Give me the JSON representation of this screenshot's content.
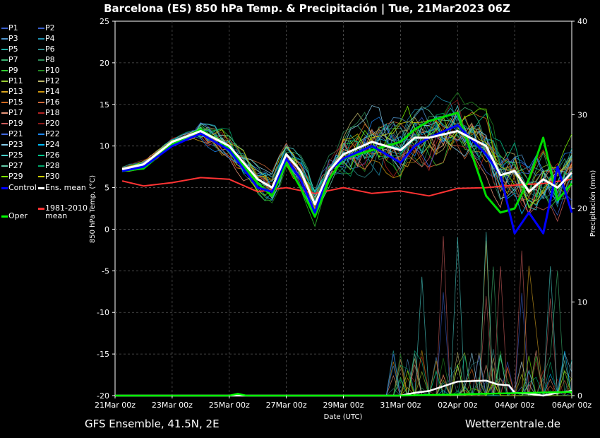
{
  "page": {
    "title": "Barcelona  (ES)  850 hPa Temp. & Precipitación | Tue, 21Mar2023 06Z",
    "footer_left": "GFS Ensemble, 41.5N, 2E",
    "footer_right": "Wetterzentrale.de"
  },
  "legend": {
    "members": [
      {
        "label": "P1",
        "color": "#3a5fcd"
      },
      {
        "label": "P2",
        "color": "#3a5fcd"
      },
      {
        "label": "P3",
        "color": "#4f94cd"
      },
      {
        "label": "P4",
        "color": "#1e90b0"
      },
      {
        "label": "P5",
        "color": "#20b2aa"
      },
      {
        "label": "P6",
        "color": "#2e8b8b"
      },
      {
        "label": "P7",
        "color": "#3cb371"
      },
      {
        "label": "P8",
        "color": "#2e8b57"
      },
      {
        "label": "P9",
        "color": "#32cd32"
      },
      {
        "label": "P10",
        "color": "#228b22"
      },
      {
        "label": "P11",
        "color": "#9acd32"
      },
      {
        "label": "P12",
        "color": "#bdb76b"
      },
      {
        "label": "P13",
        "color": "#daa520"
      },
      {
        "label": "P14",
        "color": "#cd950c"
      },
      {
        "label": "P15",
        "color": "#d2691e"
      },
      {
        "label": "P16",
        "color": "#cd6839"
      },
      {
        "label": "P17",
        "color": "#e9967a"
      },
      {
        "label": "P18",
        "color": "#b22222"
      },
      {
        "label": "P19",
        "color": "#cd5c5c"
      },
      {
        "label": "P20",
        "color": "#8b1a1a"
      },
      {
        "label": "P21",
        "color": "#4169e1"
      },
      {
        "label": "P22",
        "color": "#1c86ee"
      },
      {
        "label": "P23",
        "color": "#87ceeb"
      },
      {
        "label": "P24",
        "color": "#00bfff"
      },
      {
        "label": "P25",
        "color": "#48d1cc"
      },
      {
        "label": "P26",
        "color": "#00c78c"
      },
      {
        "label": "P27",
        "color": "#66cdaa"
      },
      {
        "label": "P28",
        "color": "#00a86b"
      },
      {
        "label": "P29",
        "color": "#7cfc00"
      },
      {
        "label": "P30",
        "color": "#cdcd00"
      }
    ],
    "control": {
      "label": "Control",
      "color": "#0000ff"
    },
    "ens_mean": {
      "label": "Ens. mean",
      "color": "#ffffff"
    },
    "climo_label_1": "1981-2010",
    "climo_label_2": "mean",
    "climo_color": "#ff3333",
    "oper": {
      "label": "Oper",
      "color": "#00ff00"
    }
  },
  "chart_data": {
    "type": "line",
    "title": "Barcelona  (ES)  850 hPa Temp. & Precipitación | Tue, 21Mar2023 06Z",
    "xlabel": "Date (UTC)",
    "ylabel": "850 hPa Temp. (°C)",
    "y2label": "Precipitación (mm)",
    "ylim": [
      -20,
      25
    ],
    "y2lim": [
      0,
      40
    ],
    "yticks": [
      "25",
      "20",
      "15",
      "10",
      "5",
      "0",
      "-5",
      "-10",
      "-15",
      "-20"
    ],
    "y2ticks": [
      "40",
      "30",
      "20",
      "10",
      "0"
    ],
    "xticks": [
      "21Mar 00z",
      "23Mar 00z",
      "25Mar 00z",
      "27Mar 00z",
      "29Mar 00z",
      "31Mar 00z",
      "02Apr 00z",
      "04Apr 00z",
      "06Apr 00z"
    ],
    "xrange_days": [
      0,
      16
    ],
    "grid": true,
    "series_key": [
      {
        "name": "Ens. mean",
        "x": [
          0.25,
          1,
          2,
          3,
          4,
          5,
          5.5,
          6,
          6.5,
          7,
          7.5,
          8,
          9,
          10,
          10.5,
          11,
          12,
          13,
          13.5,
          14,
          14.5,
          15,
          15.5,
          16
        ],
        "y": [
          7.2,
          7.8,
          10.5,
          11.8,
          10,
          6,
          5,
          9,
          7,
          3,
          7,
          9,
          10.5,
          9.5,
          11,
          11,
          11.8,
          10,
          6.5,
          7,
          4.5,
          6,
          5,
          6.8
        ]
      },
      {
        "name": "Control",
        "x": [
          0.25,
          1,
          2,
          3,
          4,
          5,
          5.5,
          6,
          6.5,
          7,
          7.5,
          8,
          9,
          10,
          10.5,
          11,
          12,
          13,
          13.5,
          14,
          14.5,
          15,
          15.5,
          16
        ],
        "y": [
          7,
          7.5,
          10,
          11.5,
          9.5,
          5,
          4.5,
          8.5,
          6,
          2,
          7,
          8.5,
          10,
          8,
          10,
          11,
          12.5,
          9,
          6.5,
          -0.5,
          2,
          -0.5,
          7.5,
          2
        ]
      },
      {
        "name": "Oper",
        "x": [
          0.25,
          1,
          2,
          3,
          4,
          5,
          5.5,
          6,
          6.5,
          7,
          7.5,
          8,
          9,
          10,
          10.5,
          11,
          12,
          13,
          13.5,
          14,
          14.5,
          15,
          15.5,
          16
        ],
        "y": [
          7,
          7.3,
          10.2,
          12,
          9.8,
          5.5,
          4,
          8,
          5,
          1.5,
          6,
          8.5,
          9.5,
          10.5,
          12,
          13,
          14,
          4,
          2,
          2.5,
          6,
          11,
          3.5,
          5.5
        ]
      },
      {
        "name": "1981-2010 mean",
        "x": [
          0.25,
          1,
          2,
          3,
          4,
          5,
          6,
          7,
          8,
          9,
          10,
          11,
          12,
          13,
          14,
          15,
          16
        ],
        "y": [
          5.8,
          5.2,
          5.6,
          6.2,
          6,
          4.5,
          5,
          4.3,
          5,
          4.3,
          4.6,
          4,
          4.9,
          5,
          5.3,
          5.5,
          6
        ]
      }
    ],
    "precip": [
      {
        "name": "Ens. mean",
        "x": [
          0,
          8,
          9,
          10,
          10.5,
          11,
          12,
          13,
          13.4,
          13.8,
          14,
          14.5,
          15,
          15.5,
          16
        ],
        "y": [
          0,
          0,
          0,
          0,
          0.3,
          0.5,
          1.5,
          1.6,
          1.2,
          1.1,
          0.3,
          0.2,
          0,
          0.3,
          0.5
        ]
      },
      {
        "name": "Oper",
        "x": [
          0,
          4,
          4.3,
          4.6,
          10,
          16
        ],
        "y": [
          0,
          0,
          0.2,
          0,
          0,
          0.4
        ]
      }
    ]
  }
}
